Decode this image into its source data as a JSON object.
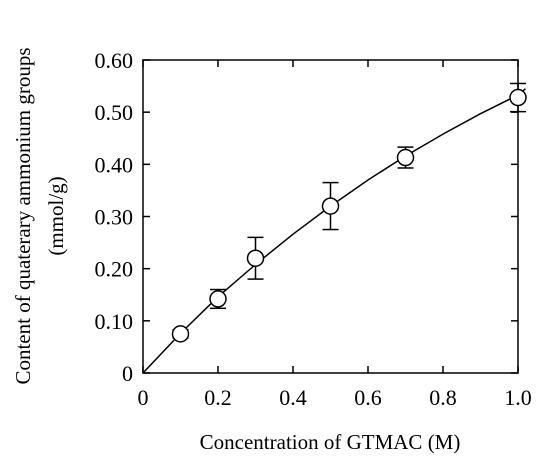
{
  "chart_data": {
    "type": "scatter",
    "title": "",
    "xlabel": "Concentration of GTMAC (M)",
    "ylabel_lines": [
      "Content of quaterary ammonium groups",
      "(mmol/g)"
    ],
    "xlim": [
      0,
      1.0
    ],
    "ylim": [
      0,
      0.6
    ],
    "x_ticks": [
      0,
      0.2,
      0.4,
      0.6,
      0.8,
      1.0
    ],
    "x_tick_labels": [
      "0",
      "0.2",
      "0.4",
      "0.6",
      "0.8",
      "1.0"
    ],
    "y_ticks": [
      0,
      0.1,
      0.2,
      0.3,
      0.4,
      0.5,
      0.6
    ],
    "y_tick_labels": [
      "0",
      "0.10",
      "0.20",
      "0.30",
      "0.40",
      "0.50",
      "0.60"
    ],
    "grid": false,
    "series": [
      {
        "points": [
          {
            "x": 0.1,
            "y": 0.075,
            "err": 0.008
          },
          {
            "x": 0.2,
            "y": 0.142,
            "err": 0.018
          },
          {
            "x": 0.3,
            "y": 0.22,
            "err": 0.04
          },
          {
            "x": 0.5,
            "y": 0.32,
            "err": 0.045
          },
          {
            "x": 0.7,
            "y": 0.413,
            "err": 0.02
          },
          {
            "x": 1.0,
            "y": 0.528,
            "err": 0.027
          }
        ]
      }
    ],
    "fit_curve": {
      "x": [
        0,
        0.1,
        0.2,
        0.3,
        0.4,
        0.5,
        0.6,
        0.7,
        0.8,
        0.9,
        1.0,
        1.02
      ],
      "y": [
        0,
        0.076,
        0.146,
        0.208,
        0.266,
        0.32,
        0.37,
        0.416,
        0.458,
        0.497,
        0.533,
        0.545
      ]
    }
  }
}
